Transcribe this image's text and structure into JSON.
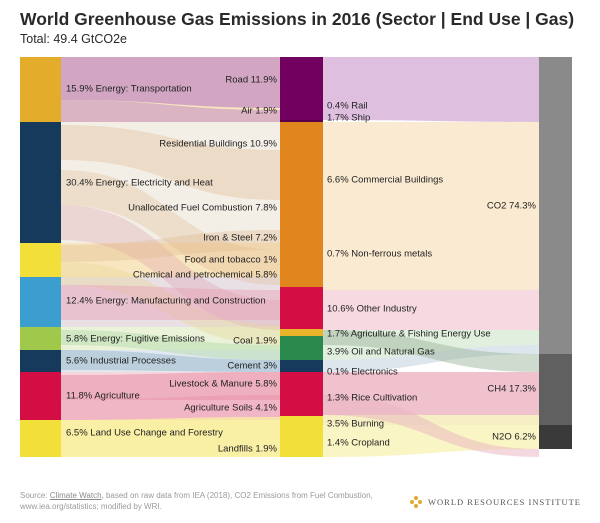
{
  "header": {
    "title": "World Greenhouse Gas Emissions in 2016 (Sector | End Use | Gas)",
    "subtitle": "Total: 49.4 GtCO2e"
  },
  "footer": {
    "source_prefix": "Source: ",
    "source_link": "Climate Watch",
    "source_rest": ", based on raw data from IEA (2018), CO2 Emissions from Fuel Combustion, www.iea.org/statistics; modified by WRI.",
    "brand": "WORLD RESOURCES INSTITUTE"
  },
  "colors": {
    "transport": "#e3ac2b",
    "electricity": "#163a5c",
    "manufacturing": "#3c9ecf",
    "fugitive": "#a0c84b",
    "industrial": "#163a5c",
    "agriculture": "#d40e44",
    "landuse": "#f2df3a",
    "gas": "#888888"
  },
  "chart_data": {
    "type": "sankey",
    "title": "World Greenhouse Gas Emissions in 2016 (Sector | End Use | Gas)",
    "subtitle": "Total: 49.4 GtCO2e",
    "units": "% of total",
    "sectors": [
      {
        "label": "15.9% Energy: Transportation",
        "value": 15.9,
        "color": "#e3ac2b"
      },
      {
        "label": "30.4% Energy: Electricity and Heat",
        "value": 30.4,
        "color": "#163a5c"
      },
      {
        "label": "12.4% Energy: Manufacturing and Construction",
        "value": 12.4,
        "color": "#3c9ecf"
      },
      {
        "label": "5.8% Energy: Fugitive Emissions",
        "value": 5.8,
        "color": "#a0c84b"
      },
      {
        "label": "5.6% Industrial Processes",
        "value": 5.6,
        "color": "#163a5c"
      },
      {
        "label": "11.8% Agriculture",
        "value": 11.8,
        "color": "#d40e44"
      },
      {
        "label": "6.5% Land Use Change and Forestry",
        "value": 6.5,
        "color": "#f2df3a"
      }
    ],
    "subsectors": [
      {
        "label": "Road 11.9%",
        "value": 11.9
      },
      {
        "label": "Air 1.9%",
        "value": 1.9
      },
      {
        "label": "Residential Buildings 10.9%",
        "value": 10.9
      },
      {
        "label": "Unallocated Fuel Combustion 7.8%",
        "value": 7.8
      },
      {
        "label": "Iron & Steel 7.2%",
        "value": 7.2
      },
      {
        "label": "Food and tobacco 1%",
        "value": 1.0
      },
      {
        "label": "Chemical and petrochemical 5.8%",
        "value": 5.8
      },
      {
        "label": "Coal 1.9%",
        "value": 1.9
      },
      {
        "label": "Cement 3%",
        "value": 3.0
      },
      {
        "label": "Livestock & Manure 5.8%",
        "value": 5.8
      },
      {
        "label": "Agriculture Soils 4.1%",
        "value": 4.1
      },
      {
        "label": "Landfills 1.9%",
        "value": 1.9
      }
    ],
    "end_uses": [
      {
        "label": "0.4% Rail",
        "value": 0.4,
        "color": "#71005e"
      },
      {
        "label": "1.7% Ship",
        "value": 1.7,
        "color": "#71005e"
      },
      {
        "label": "6.6% Commercial Buildings",
        "value": 6.6,
        "color": "#e0861c"
      },
      {
        "label": "0.7% Non-ferrous metals",
        "value": 0.7,
        "color": "#e0861c"
      },
      {
        "label": "10.6% Other Industry",
        "value": 10.6,
        "color": "#d40e44"
      },
      {
        "label": "1.7% Agriculture & Fishing Energy Use",
        "value": 1.7,
        "color": "#e9b429"
      },
      {
        "label": "3.9% Oil and Natural Gas",
        "value": 3.9,
        "color": "#2a8a4e"
      },
      {
        "label": "0.1% Electronics",
        "value": 0.1,
        "color": "#163a5c"
      },
      {
        "label": "1.3% Rice Cultivation",
        "value": 1.3,
        "color": "#d40e44"
      },
      {
        "label": "3.5% Burning",
        "value": 3.5,
        "color": "#f2df3a"
      },
      {
        "label": "1.4% Cropland",
        "value": 1.4,
        "color": "#f2df3a"
      }
    ],
    "gases": [
      {
        "label": "CO2 74.3%",
        "value": 74.3,
        "color": "#8a8a8a"
      },
      {
        "label": "CH4 17.3%",
        "value": 17.3,
        "color": "#606060"
      },
      {
        "label": "N2O 6.2%",
        "value": 6.2,
        "color": "#3a3a3a"
      }
    ]
  }
}
